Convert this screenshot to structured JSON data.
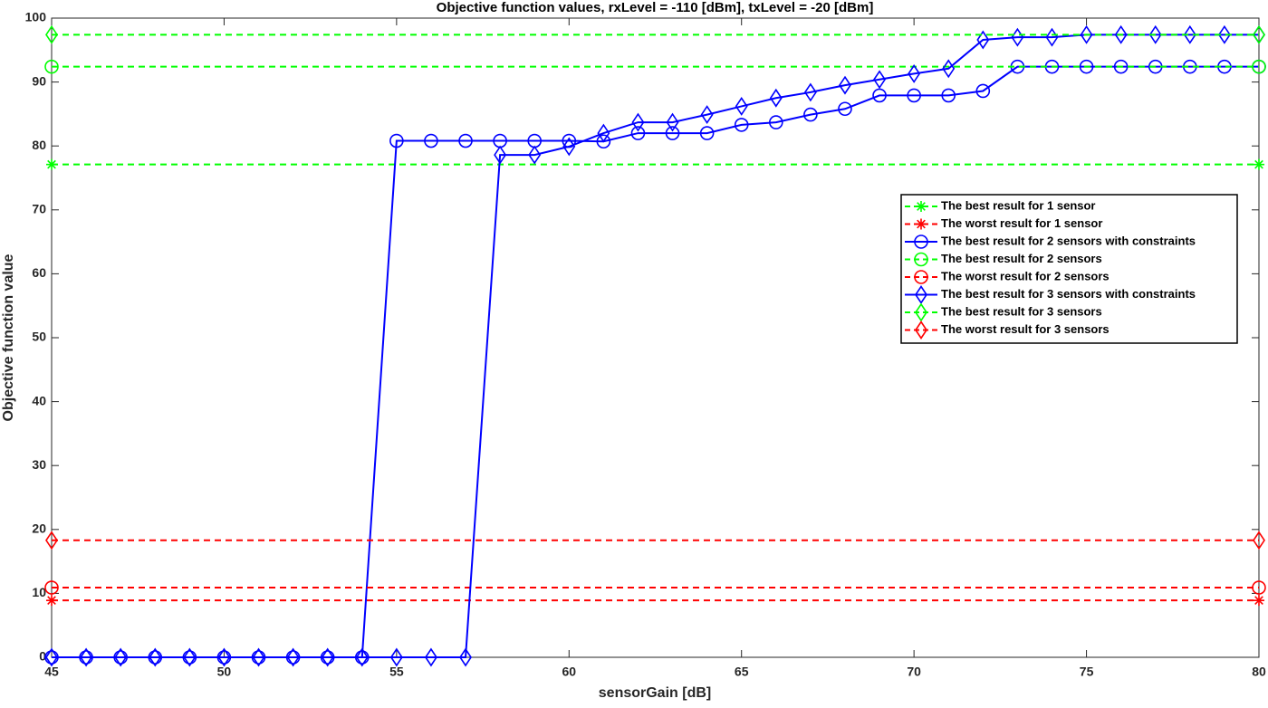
{
  "chart_data": {
    "type": "line",
    "title": "Objective function values, rxLevel = -110 [dBm], txLevel = -20 [dBm]",
    "xlabel": "sensorGain [dB]",
    "ylabel": "Objective function value",
    "xlim": [
      45,
      80
    ],
    "ylim": [
      0,
      100
    ],
    "xticks": [
      45,
      50,
      55,
      60,
      65,
      70,
      75,
      80
    ],
    "yticks": [
      0,
      10,
      20,
      30,
      40,
      50,
      60,
      70,
      80,
      90,
      100
    ],
    "grid": false,
    "legend": "upper right",
    "series": [
      {
        "name": "The best result for 1 sensor",
        "color": "#00ff00",
        "linestyle": "dashed",
        "marker": "star",
        "x": [
          45,
          80
        ],
        "values": [
          77.1,
          77.1
        ]
      },
      {
        "name": "The worst result for 1 sensor",
        "color": "#ff0000",
        "linestyle": "dashed",
        "marker": "star",
        "x": [
          45,
          80
        ],
        "values": [
          8.9,
          8.9
        ]
      },
      {
        "name": "The best result for 2 sensors with constraints",
        "color": "#0000ff",
        "linestyle": "solid",
        "marker": "circle",
        "x": [
          45,
          46,
          47,
          48,
          49,
          50,
          51,
          52,
          53,
          54,
          55,
          56,
          57,
          58,
          59,
          60,
          61,
          62,
          63,
          64,
          65,
          66,
          67,
          68,
          69,
          70,
          71,
          72,
          73,
          74,
          75,
          76,
          77,
          78,
          79,
          80
        ],
        "values": [
          0,
          0,
          0,
          0,
          0,
          0,
          0,
          0,
          0,
          0,
          80.8,
          80.8,
          80.8,
          80.8,
          80.8,
          80.8,
          80.7,
          82.0,
          82.0,
          82.0,
          83.3,
          83.7,
          84.9,
          85.8,
          87.9,
          87.9,
          87.9,
          88.6,
          92.4,
          92.4,
          92.4,
          92.4,
          92.4,
          92.4,
          92.4,
          92.4
        ]
      },
      {
        "name": "The best result for 2 sensors",
        "color": "#00ff00",
        "linestyle": "dashed",
        "marker": "circle",
        "x": [
          45,
          80
        ],
        "values": [
          92.4,
          92.4
        ]
      },
      {
        "name": "The worst result for 2 sensors",
        "color": "#ff0000",
        "linestyle": "dashed",
        "marker": "circle",
        "x": [
          45,
          80
        ],
        "values": [
          10.9,
          10.9
        ]
      },
      {
        "name": "The best result for 3 sensors with constraints",
        "color": "#0000ff",
        "linestyle": "solid",
        "marker": "diamond",
        "x": [
          45,
          46,
          47,
          48,
          49,
          50,
          51,
          52,
          53,
          54,
          55,
          56,
          57,
          58,
          59,
          60,
          61,
          62,
          63,
          64,
          65,
          66,
          67,
          68,
          69,
          70,
          71,
          72,
          73,
          74,
          75,
          76,
          77,
          78,
          79,
          80
        ],
        "values": [
          0,
          0,
          0,
          0,
          0,
          0,
          0,
          0,
          0,
          0,
          0,
          0,
          0,
          78.6,
          78.6,
          79.9,
          82.0,
          83.7,
          83.7,
          84.9,
          86.2,
          87.5,
          88.4,
          89.5,
          90.4,
          91.3,
          92.1,
          96.6,
          97.0,
          97.0,
          97.4,
          97.4,
          97.4,
          97.4,
          97.4,
          97.4
        ]
      },
      {
        "name": "The best result for 3 sensors",
        "color": "#00ff00",
        "linestyle": "dashed",
        "marker": "diamond",
        "x": [
          45,
          80
        ],
        "values": [
          97.4,
          97.4
        ]
      },
      {
        "name": "The worst result for 3 sensors",
        "color": "#ff0000",
        "linestyle": "dashed",
        "marker": "diamond",
        "x": [
          45,
          80
        ],
        "values": [
          18.3,
          18.3
        ]
      }
    ]
  }
}
